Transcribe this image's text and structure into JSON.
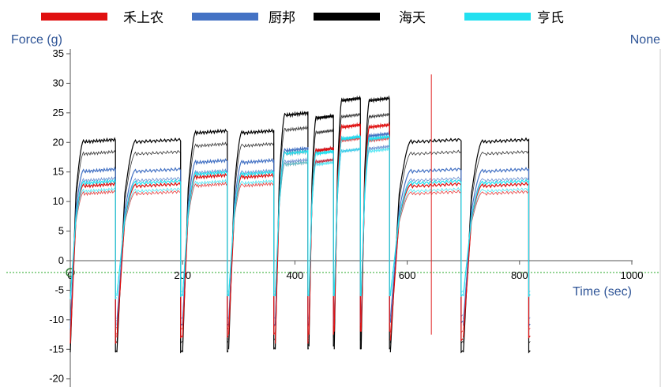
{
  "chart_data": {
    "type": "line",
    "xlabel": "Time (sec)",
    "ylabel": "Force (g)",
    "y2label": "None",
    "xlim": [
      0,
      1000
    ],
    "ylim": [
      -20,
      35
    ],
    "x_ticks": [
      "0",
      "200",
      "400",
      "600",
      "800",
      "1000"
    ],
    "y_ticks": [
      "35",
      "30",
      "25",
      "20",
      "15",
      "10",
      "5",
      "0",
      "-5",
      "-10",
      "-15",
      "-20"
    ],
    "reference_line": {
      "y": -2,
      "style": "dotted",
      "color": "#2aa82a"
    },
    "marker_line": {
      "x": 643,
      "y_top": 31.5,
      "y_bottom": -12.5,
      "color": "#e02020"
    },
    "legend_position": "top",
    "cycles": [
      {
        "start": 0,
        "end": 83,
        "peak": {
          "禾上农": 13,
          "厨邦": 15.5,
          "海天": 20.5,
          "亨氏": 13.5
        },
        "trough": {
          "禾上农": -14,
          "厨邦": -11.5,
          "海天": -15.5,
          "亨氏": -6.5
        }
      },
      {
        "start": 83,
        "end": 200,
        "peak": {
          "禾上农": 13,
          "厨邦": 15.5,
          "海天": 20.5,
          "亨氏": 13.5
        },
        "trough": {
          "禾上农": -13,
          "厨邦": -11,
          "海天": -15.5,
          "亨氏": -6
        }
      },
      {
        "start": 200,
        "end": 282,
        "peak": {
          "禾上农": 14.5,
          "厨邦": 17,
          "海天": 22,
          "亨氏": 15
        },
        "trough": {
          "禾上农": -13,
          "厨邦": -11,
          "海天": -15.5,
          "亨氏": -6
        }
      },
      {
        "start": 282,
        "end": 365,
        "peak": {
          "禾上农": 14.5,
          "厨邦": 17,
          "海天": 22,
          "亨氏": 15
        },
        "trough": {
          "禾上农": -12.5,
          "厨邦": -11,
          "海天": -15,
          "亨氏": -6
        }
      },
      {
        "start": 365,
        "end": 425,
        "peak": {
          "禾上农": 18.5,
          "厨邦": 19,
          "海天": 25,
          "亨氏": 18.5
        },
        "trough": {
          "禾上农": -14,
          "厨邦": -11,
          "海天": -15,
          "亨氏": -6
        }
      },
      {
        "start": 425,
        "end": 470,
        "peak": {
          "禾上农": 19,
          "厨邦": 19,
          "海天": 24.5,
          "亨氏": 18.5
        },
        "trough": {
          "禾上农": -12.5,
          "厨邦": -11,
          "海天": -14.5,
          "亨氏": -6
        }
      },
      {
        "start": 470,
        "end": 518,
        "peak": {
          "禾上农": 23,
          "厨邦": 21,
          "海天": 27.5,
          "亨氏": 21
        },
        "trough": {
          "禾上农": -12,
          "厨邦": -11,
          "海天": -15,
          "亨氏": -6
        }
      },
      {
        "start": 518,
        "end": 570,
        "peak": {
          "禾上农": 23,
          "厨邦": 21.5,
          "海天": 27.5,
          "亨氏": 21
        },
        "trough": {
          "禾上农": -12,
          "厨邦": -10.5,
          "海天": -15,
          "亨氏": -6
        }
      },
      {
        "start": 570,
        "end": 700,
        "peak": {
          "禾上农": 13,
          "厨邦": 15.5,
          "海天": 20.5,
          "亨氏": 13.5
        },
        "trough": {
          "禾上农": -13.5,
          "厨邦": -10.5,
          "海天": -15.5,
          "亨氏": -6
        }
      },
      {
        "start": 700,
        "end": 820,
        "peak": {
          "禾上农": 13,
          "厨邦": 15.5,
          "海天": 20.5,
          "亨氏": 13.5
        },
        "trough": {
          "禾上农": -13,
          "厨邦": -11,
          "海天": -15.5,
          "亨氏": -6
        }
      }
    ],
    "series": [
      {
        "name": "禾上农",
        "color": "#e01010"
      },
      {
        "name": "厨邦",
        "color": "#4472c4"
      },
      {
        "name": "海天",
        "color": "#000000"
      },
      {
        "name": "亨氏",
        "color": "#22e0f0"
      }
    ]
  }
}
